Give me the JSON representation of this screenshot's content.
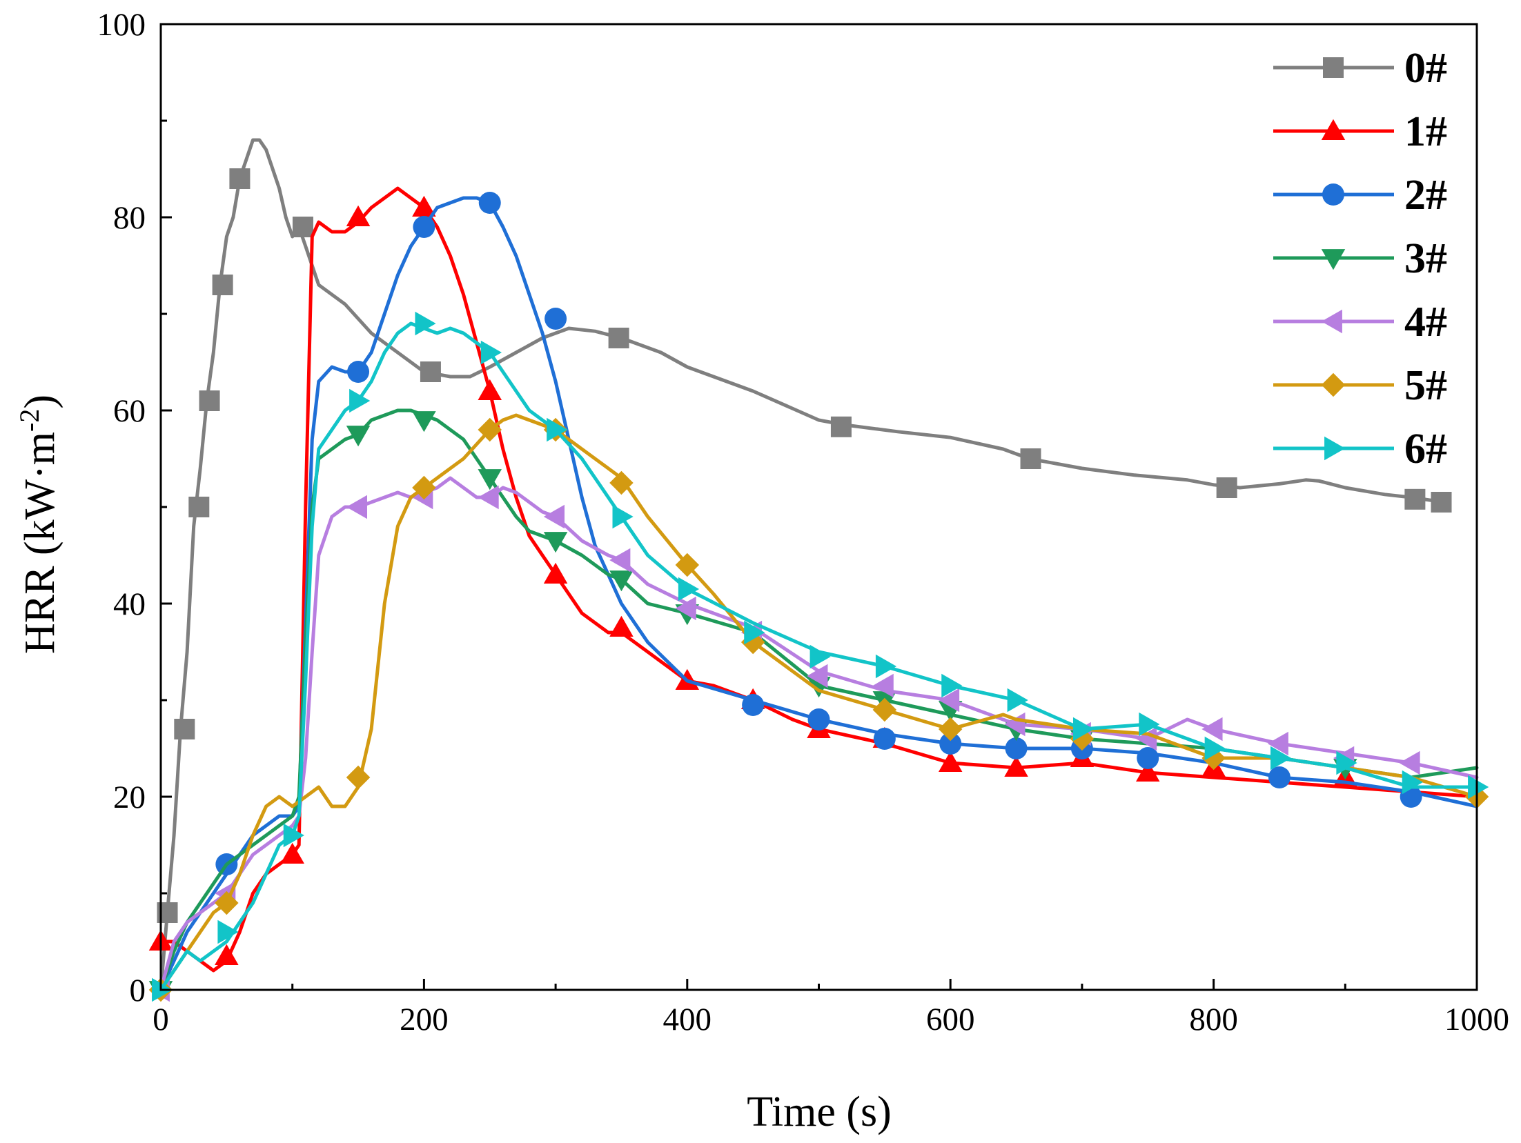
{
  "chart_data": {
    "type": "line",
    "title": "",
    "xlabel": "Time (s)",
    "ylabel_main": "HRR (kW·m",
    "ylabel_sup": "-2",
    "ylabel_close": ")",
    "xlim": [
      0,
      1000
    ],
    "ylim": [
      0,
      100
    ],
    "xticks": [
      0,
      200,
      400,
      600,
      800,
      1000
    ],
    "yticks": [
      0,
      20,
      40,
      60,
      80,
      100
    ],
    "legend_position": "top-right",
    "grid": false,
    "series": [
      {
        "name": "0#",
        "color": "#7f7f7f",
        "marker": "square",
        "x": [
          0,
          5,
          10,
          15,
          20,
          25,
          30,
          35,
          40,
          45,
          50,
          55,
          60,
          65,
          70,
          75,
          80,
          85,
          90,
          95,
          100,
          105,
          110,
          120,
          140,
          160,
          180,
          200,
          220,
          235,
          250,
          270,
          290,
          310,
          330,
          350,
          380,
          400,
          450,
          500,
          520,
          560,
          600,
          640,
          660,
          700,
          740,
          780,
          800,
          820,
          850,
          870,
          880,
          900,
          930,
          950,
          970
        ],
        "y": [
          0,
          8,
          16,
          27,
          35,
          48,
          54,
          61,
          66,
          73,
          78,
          80,
          84,
          86,
          88,
          88,
          87,
          85,
          83,
          80,
          78,
          79,
          77,
          73,
          71,
          68,
          66,
          64,
          63.5,
          63.5,
          64.5,
          66,
          67.5,
          68.5,
          68.2,
          67.5,
          66,
          64.5,
          62,
          59,
          58.5,
          57.8,
          57.2,
          56,
          55,
          54,
          53.3,
          52.8,
          52.3,
          52.0,
          52.4,
          52.8,
          52.7,
          52,
          51.3,
          51.0,
          50.6
        ],
        "markers_x": [
          5,
          18,
          29,
          37,
          47,
          60,
          108,
          205,
          348,
          517,
          661,
          810,
          953,
          973
        ],
        "markers_y": [
          8,
          27,
          50,
          61,
          73,
          84,
          79,
          64,
          67.5,
          58.3,
          55,
          52,
          50.8,
          50.5
        ]
      },
      {
        "name": "1#",
        "color": "#ff0000",
        "marker": "triangle-up",
        "x": [
          0,
          10,
          20,
          30,
          40,
          50,
          60,
          70,
          80,
          90,
          100,
          105,
          110,
          115,
          120,
          130,
          140,
          150,
          160,
          170,
          180,
          190,
          200,
          210,
          220,
          230,
          240,
          250,
          260,
          270,
          280,
          290,
          300,
          320,
          340,
          350,
          370,
          390,
          400,
          420,
          450,
          480,
          500,
          550,
          600,
          650,
          700,
          750,
          800,
          850,
          900,
          950,
          1000
        ],
        "y": [
          5,
          5,
          4,
          3,
          2,
          3,
          6,
          10,
          12,
          13,
          14,
          15,
          50,
          78,
          79.5,
          78.5,
          78.5,
          79.5,
          81,
          82,
          83,
          82,
          81,
          79,
          76,
          72,
          67,
          62,
          56,
          51,
          47,
          45,
          43,
          39,
          37,
          37,
          35,
          33,
          32,
          31.5,
          30,
          28,
          27,
          25.5,
          23.5,
          23,
          23.5,
          22.5,
          22,
          21.5,
          21,
          20.5,
          20
        ],
        "markers_x": [
          0,
          50,
          100,
          150,
          200,
          250,
          300,
          350,
          400,
          450,
          500,
          550,
          600,
          650,
          700,
          750,
          800,
          900
        ],
        "markers_y": [
          5,
          3.5,
          14,
          80,
          81,
          62,
          43,
          37.5,
          32,
          30,
          27,
          26,
          23.5,
          23,
          24,
          22.5,
          23,
          22
        ]
      },
      {
        "name": "2#",
        "color": "#1f6fd6",
        "marker": "circle",
        "x": [
          0,
          10,
          20,
          30,
          40,
          50,
          60,
          70,
          80,
          90,
          100,
          105,
          110,
          115,
          120,
          130,
          140,
          150,
          160,
          170,
          180,
          190,
          200,
          210,
          220,
          230,
          240,
          250,
          260,
          270,
          280,
          290,
          300,
          310,
          320,
          330,
          340,
          350,
          370,
          400,
          450,
          500,
          550,
          600,
          650,
          700,
          750,
          800,
          850,
          900,
          950,
          1000
        ],
        "y": [
          0,
          3,
          6,
          8,
          10,
          12,
          14,
          16,
          17,
          18,
          18,
          19,
          38,
          57,
          63,
          64.5,
          64,
          64,
          66,
          70,
          74,
          77,
          79,
          81,
          81.5,
          82,
          82,
          81.5,
          79,
          76,
          72,
          68,
          63,
          57,
          51,
          46,
          43,
          40,
          36,
          32,
          30,
          28,
          26.5,
          25.5,
          25,
          25,
          24.5,
          23.5,
          22,
          21.5,
          20.5,
          19
        ],
        "markers_x": [
          50,
          150,
          200,
          250,
          300,
          450,
          500,
          550,
          600,
          650,
          700,
          750,
          850,
          950
        ],
        "markers_y": [
          13,
          64,
          79,
          81.5,
          69.5,
          29.5,
          28,
          26,
          25.5,
          25,
          25,
          24,
          22,
          20
        ]
      },
      {
        "name": "3#",
        "color": "#1e9a5a",
        "marker": "triangle-down",
        "x": [
          0,
          10,
          20,
          30,
          40,
          50,
          60,
          70,
          80,
          90,
          100,
          105,
          110,
          115,
          120,
          130,
          140,
          150,
          160,
          170,
          180,
          190,
          200,
          210,
          220,
          230,
          240,
          250,
          260,
          270,
          280,
          290,
          300,
          320,
          340,
          350,
          370,
          400,
          450,
          500,
          550,
          600,
          650,
          700,
          750,
          800,
          850,
          900,
          950,
          1000
        ],
        "y": [
          0,
          4,
          7,
          9,
          11,
          13,
          14,
          15,
          16,
          17,
          18,
          20,
          36,
          50,
          55,
          56,
          57,
          57.5,
          59,
          59.5,
          60,
          60,
          59.5,
          59,
          58,
          57,
          55,
          53,
          51,
          49,
          47.5,
          47,
          46.5,
          45,
          43,
          42.5,
          40,
          39,
          37,
          31.5,
          30,
          28.5,
          27,
          26,
          25.5,
          25,
          24,
          23,
          22,
          23
        ],
        "markers_x": [
          0,
          150,
          200,
          250,
          300,
          350,
          400,
          500,
          550,
          600,
          650,
          700,
          900
        ],
        "markers_y": [
          0,
          57.5,
          59,
          53,
          46.5,
          42.5,
          39,
          31.5,
          30,
          29,
          27,
          26,
          23
        ]
      },
      {
        "name": "4#",
        "color": "#b77ee0",
        "marker": "triangle-left",
        "x": [
          0,
          10,
          20,
          30,
          40,
          50,
          60,
          70,
          80,
          90,
          100,
          105,
          110,
          115,
          120,
          130,
          140,
          150,
          160,
          170,
          180,
          190,
          200,
          210,
          220,
          230,
          240,
          250,
          260,
          270,
          280,
          290,
          300,
          320,
          340,
          350,
          370,
          400,
          450,
          500,
          550,
          600,
          650,
          700,
          750,
          780,
          800,
          850,
          900,
          950,
          1000
        ],
        "y": [
          0,
          5,
          7,
          8,
          9,
          10,
          12,
          14,
          15,
          16,
          17,
          18,
          24,
          35,
          45,
          49,
          50,
          50,
          50.5,
          51,
          51.5,
          51,
          51.5,
          52,
          53,
          52,
          51,
          51,
          52,
          51.5,
          50.5,
          49.5,
          49,
          46.5,
          45,
          44.5,
          42,
          40,
          37.5,
          33,
          31,
          30,
          27.5,
          27,
          26,
          28,
          27,
          25.5,
          24.5,
          23.5,
          22
        ],
        "markers_x": [
          0,
          50,
          150,
          200,
          250,
          300,
          350,
          400,
          450,
          500,
          550,
          600,
          650,
          700,
          750,
          800,
          850,
          900,
          950
        ],
        "markers_y": [
          0,
          10,
          50,
          51,
          51,
          49,
          44.5,
          39.5,
          37,
          32.5,
          31.5,
          30,
          27.5,
          26.5,
          26,
          27,
          25.5,
          24,
          23.5
        ]
      },
      {
        "name": "5#",
        "color": "#d39a11",
        "marker": "diamond",
        "x": [
          0,
          10,
          20,
          30,
          40,
          50,
          60,
          70,
          80,
          90,
          100,
          110,
          120,
          130,
          140,
          150,
          160,
          170,
          180,
          190,
          200,
          210,
          220,
          230,
          240,
          250,
          260,
          270,
          280,
          290,
          300,
          320,
          340,
          350,
          370,
          400,
          420,
          450,
          500,
          550,
          600,
          640,
          650,
          700,
          750,
          800,
          850,
          900,
          950,
          1000
        ],
        "y": [
          0,
          2,
          4,
          6,
          8,
          9,
          12,
          16,
          19,
          20,
          19,
          20,
          21,
          19,
          19,
          21,
          27,
          40,
          48,
          51,
          52,
          53,
          54,
          55,
          56.5,
          58,
          59,
          59.5,
          59,
          58.5,
          58,
          56,
          54,
          53,
          49,
          44,
          41,
          36,
          31,
          29,
          27,
          28.5,
          28,
          27,
          26.5,
          24,
          24,
          23,
          22,
          20
        ],
        "markers_x": [
          0,
          50,
          150,
          200,
          250,
          300,
          350,
          400,
          450,
          550,
          600,
          700,
          800,
          1000
        ],
        "markers_y": [
          0,
          9,
          22,
          52,
          58,
          58,
          52.5,
          44,
          36,
          29,
          27,
          26,
          24,
          20
        ]
      },
      {
        "name": "6#",
        "color": "#12c4c8",
        "marker": "triangle-right",
        "x": [
          0,
          10,
          20,
          30,
          40,
          50,
          60,
          70,
          80,
          90,
          100,
          105,
          110,
          115,
          120,
          130,
          140,
          150,
          160,
          170,
          180,
          190,
          200,
          210,
          220,
          230,
          240,
          250,
          260,
          270,
          280,
          290,
          300,
          320,
          340,
          350,
          370,
          400,
          450,
          500,
          550,
          600,
          650,
          700,
          750,
          800,
          850,
          900,
          950,
          1000
        ],
        "y": [
          0,
          2,
          4,
          3,
          4,
          5,
          7,
          9,
          12,
          15,
          16,
          18,
          32,
          48,
          56,
          58,
          60,
          61,
          63,
          66,
          68,
          69,
          68.5,
          68,
          68.5,
          68,
          67,
          66,
          64,
          62,
          60,
          59,
          58,
          55,
          51,
          49,
          45,
          41.5,
          38,
          35,
          33.5,
          31.5,
          30,
          27,
          27.5,
          25,
          24,
          23,
          21,
          21
        ],
        "markers_x": [
          0,
          50,
          100,
          150,
          200,
          250,
          300,
          350,
          400,
          450,
          500,
          550,
          600,
          650,
          700,
          750,
          800,
          850,
          900,
          950,
          1000
        ],
        "markers_y": [
          0,
          6,
          16,
          61,
          69,
          66,
          58,
          49,
          41.5,
          37,
          34.5,
          33.5,
          31.5,
          30,
          27,
          27.5,
          25,
          24,
          23.5,
          21.5,
          21
        ]
      }
    ]
  }
}
